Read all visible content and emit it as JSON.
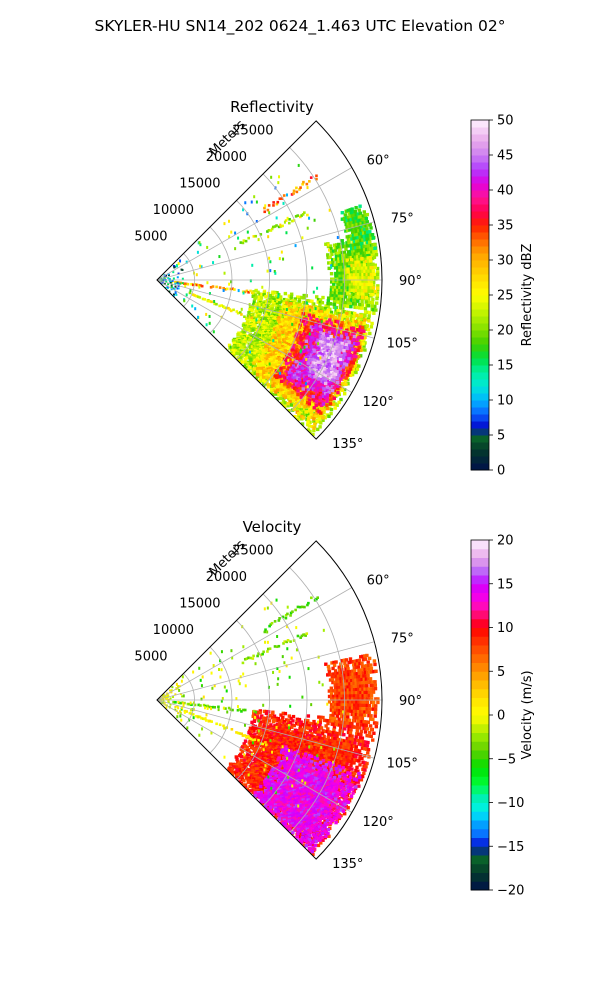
{
  "figure": {
    "title": "SKYLER-HU  SN14_202  0624_1.463 UTC Elevation 02°"
  },
  "chart_data": [
    {
      "type": "heatmap",
      "title": "Reflectivity",
      "radial_label": "Meters",
      "r_ticks": [
        5000,
        10000,
        15000,
        20000,
        25000
      ],
      "r_tick_labels": [
        "5000",
        "10000",
        "15000",
        "20000",
        "25000"
      ],
      "r_range": [
        0,
        30000
      ],
      "theta_range_deg": [
        45,
        135
      ],
      "theta_ticks_deg": [
        60,
        75,
        90,
        105,
        120,
        135
      ],
      "theta_tick_labels": [
        "60°",
        "75°",
        "90°",
        "105°",
        "120°",
        "135°"
      ],
      "grid": true,
      "colorbar": {
        "label": "Reflectivity dBZ",
        "range": [
          0,
          50
        ],
        "ticks": [
          0,
          5,
          10,
          15,
          20,
          25,
          30,
          35,
          40,
          45,
          50
        ],
        "tick_labels": [
          "0",
          "5",
          "10",
          "15",
          "20",
          "25",
          "30",
          "35",
          "40",
          "45",
          "50"
        ]
      },
      "echo_regions": [
        {
          "az": [
            96,
            136
          ],
          "r": [
            13000,
            29500
          ],
          "value": 22
        },
        {
          "az": [
            100,
            134
          ],
          "r": [
            17000,
            29000
          ],
          "value": 28
        },
        {
          "az": [
            103,
            130
          ],
          "r": [
            20000,
            28500
          ],
          "value": 36
        },
        {
          "az": [
            106,
            127
          ],
          "r": [
            21500,
            28000
          ],
          "value": 42
        },
        {
          "az": [
            108,
            122
          ],
          "r": [
            23000,
            27000
          ],
          "value": 46
        },
        {
          "az": [
            78,
            98
          ],
          "r": [
            23000,
            29500
          ],
          "value": 20
        },
        {
          "az": [
            84,
            95
          ],
          "r": [
            25500,
            29500
          ],
          "value": 24
        },
        {
          "az": [
            70,
            82
          ],
          "r": [
            26000,
            29500
          ],
          "value": 18
        }
      ],
      "echo_lines": [
        {
          "az": 97,
          "r": [
            2000,
            13500
          ],
          "value": 30
        },
        {
          "az": 112,
          "r": [
            4000,
            16000
          ],
          "value": 25
        },
        {
          "az": 66,
          "r": [
            12000,
            22000
          ],
          "value": 22
        },
        {
          "az": 57,
          "r": [
            17000,
            25500
          ],
          "value": 32
        }
      ],
      "clutter_value": 10
    },
    {
      "type": "heatmap",
      "title": "Velocity",
      "radial_label": "Meters",
      "r_ticks": [
        5000,
        10000,
        15000,
        20000,
        25000
      ],
      "r_tick_labels": [
        "5000",
        "10000",
        "15000",
        "20000",
        "25000"
      ],
      "r_range": [
        0,
        30000
      ],
      "theta_range_deg": [
        45,
        135
      ],
      "theta_ticks_deg": [
        60,
        75,
        90,
        105,
        120,
        135
      ],
      "theta_tick_labels": [
        "60°",
        "75°",
        "90°",
        "105°",
        "120°",
        "135°"
      ],
      "grid": true,
      "colorbar": {
        "label": "Velocity (m/s)",
        "range": [
          -20,
          20
        ],
        "ticks": [
          -20,
          -15,
          -10,
          -5,
          0,
          5,
          10,
          15,
          20
        ],
        "tick_labels": [
          "−20",
          "−15",
          "−10",
          "−5",
          "0",
          "5",
          "10",
          "15",
          "20"
        ]
      },
      "echo_regions": [
        {
          "az": [
            96,
            136
          ],
          "r": [
            13000,
            29500
          ],
          "value": 9
        },
        {
          "az": [
            110,
            136
          ],
          "r": [
            18000,
            29000
          ],
          "value": 14
        },
        {
          "az": [
            78,
            98
          ],
          "r": [
            23000,
            29500
          ],
          "value": 8
        }
      ],
      "echo_lines": [
        {
          "az": 97,
          "r": [
            2000,
            13500
          ],
          "value": -4
        },
        {
          "az": 112,
          "r": [
            4000,
            16000
          ],
          "value": 1
        },
        {
          "az": 66,
          "r": [
            12000,
            22000
          ],
          "value": -3
        },
        {
          "az": 57,
          "r": [
            17000,
            25500
          ],
          "value": -4
        }
      ],
      "clutter_value": 0
    }
  ]
}
